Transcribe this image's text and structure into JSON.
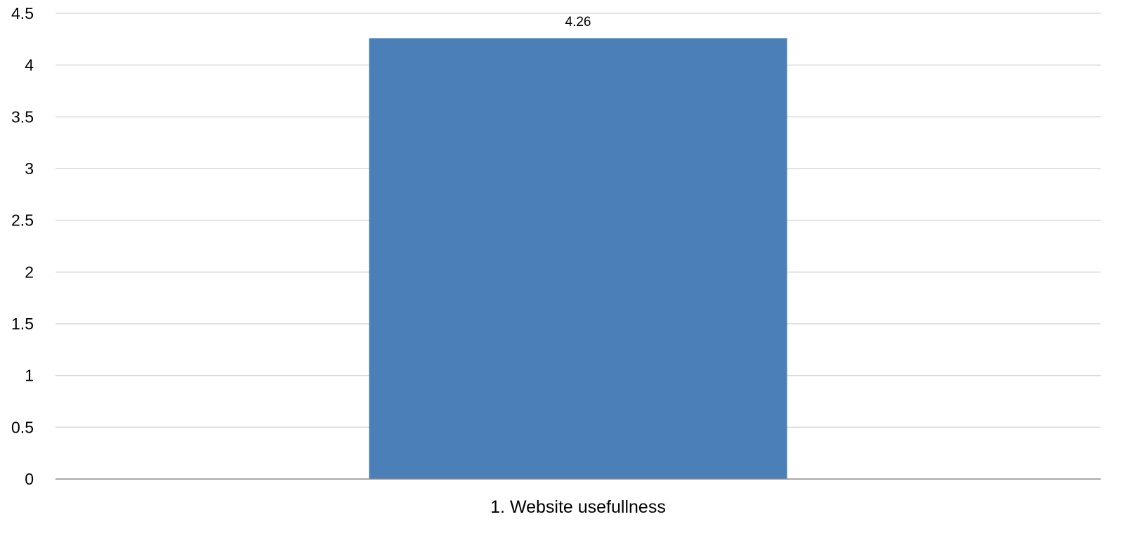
{
  "chart_data": {
    "type": "bar",
    "categories": [
      "1. Website usefullness"
    ],
    "values": [
      4.26
    ],
    "data_labels": [
      "4.26"
    ],
    "ylim": [
      0,
      4.5
    ],
    "y_ticks": [
      0,
      0.5,
      1,
      1.5,
      2,
      2.5,
      3,
      3.5,
      4,
      4.5
    ],
    "y_tick_labels": [
      "0",
      "0.5",
      "1",
      "1.5",
      "2",
      "2.5",
      "3",
      "3.5",
      "4",
      "4.5"
    ],
    "grid": true,
    "legend": "none",
    "colors": {
      "bar": "#4a7fb8",
      "grid": "#d9d9d9",
      "axis": "#8c8c8c"
    }
  }
}
